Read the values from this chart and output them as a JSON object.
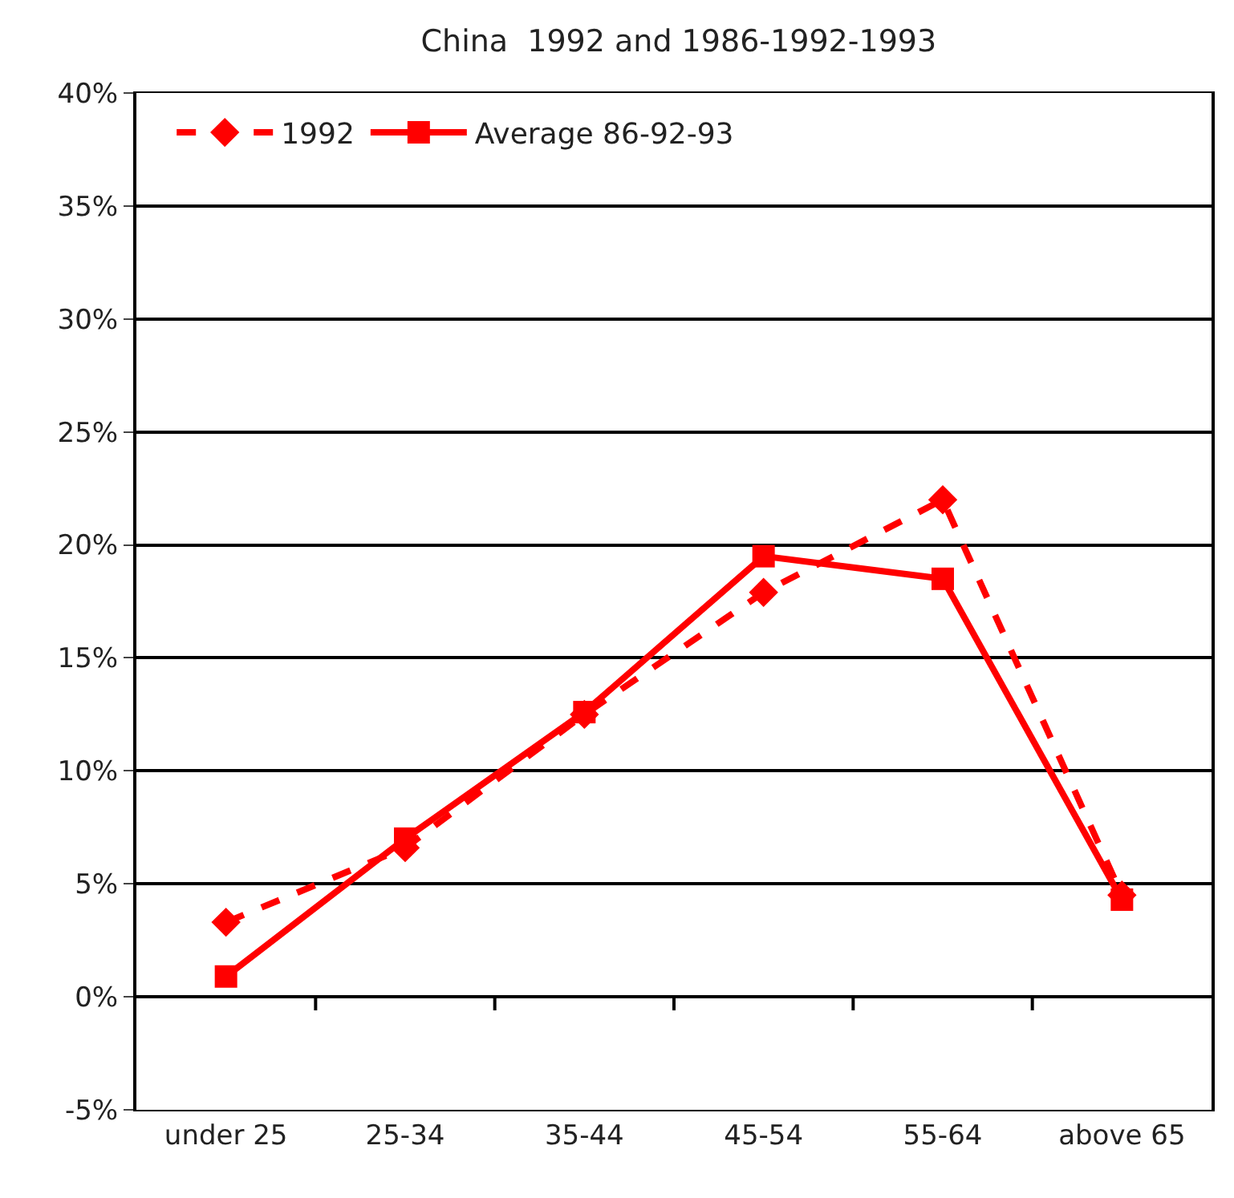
{
  "chart_data": {
    "type": "line",
    "title": "China  1992 and 1986-1992-1993",
    "categories": [
      "under 25",
      "25-34",
      "35-44",
      "45-54",
      "55-64",
      "above 65"
    ],
    "series": [
      {
        "name": "1992",
        "color": "#ff0000",
        "values": [
          3.3,
          6.6,
          12.5,
          17.9,
          22.0,
          4.5
        ],
        "marker": "diamond",
        "line_style": "dashed"
      },
      {
        "name": "Average 86-92-93",
        "color": "#ff0000",
        "values": [
          0.9,
          7.0,
          12.6,
          19.5,
          18.5,
          4.3
        ],
        "marker": "square",
        "line_style": "solid"
      }
    ],
    "ylim": [
      -5,
      40
    ],
    "yticks": [
      {
        "value": -5,
        "label": "-5%"
      },
      {
        "value": 0,
        "label": "0%"
      },
      {
        "value": 5,
        "label": "5%"
      },
      {
        "value": 10,
        "label": "10%"
      },
      {
        "value": 15,
        "label": "15%"
      },
      {
        "value": 20,
        "label": "20%"
      },
      {
        "value": 25,
        "label": "25%"
      },
      {
        "value": 30,
        "label": "30%"
      },
      {
        "value": 35,
        "label": "35%"
      },
      {
        "value": 40,
        "label": "40%"
      }
    ],
    "grid": "y",
    "legend": "top left"
  }
}
